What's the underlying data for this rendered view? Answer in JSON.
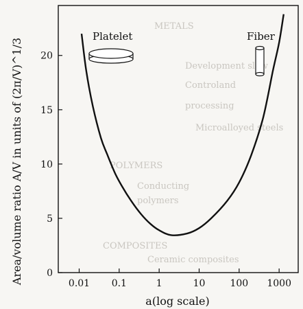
{
  "chart_data": {
    "type": "line",
    "xlabel": "a(log scale)",
    "ylabel": "Area/volume ratio A/V in units of (2π/V)^1/3",
    "xscale": "log",
    "xlim": [
      0.003,
      3000
    ],
    "ylim": [
      0,
      24.6
    ],
    "x_ticks": [
      {
        "value": 0.01,
        "label": "0.01"
      },
      {
        "value": 0.1,
        "label": "0.1"
      },
      {
        "value": 1,
        "label": "1"
      },
      {
        "value": 10,
        "label": "10"
      },
      {
        "value": 100,
        "label": "100"
      },
      {
        "value": 1000,
        "label": "1000"
      }
    ],
    "y_ticks": [
      {
        "value": 0,
        "label": "0"
      },
      {
        "value": 5,
        "label": "5"
      },
      {
        "value": 10,
        "label": "10"
      },
      {
        "value": 15,
        "label": "15"
      },
      {
        "value": 20,
        "label": "20"
      }
    ],
    "series": [
      {
        "x": [
          0.0115,
          0.015,
          0.022,
          0.035,
          0.05,
          0.08,
          0.12,
          0.2,
          0.35,
          0.6,
          1.0,
          2.0,
          5.0,
          10,
          20,
          50,
          100,
          200,
          400,
          700,
          1000,
          1300
        ],
        "y": [
          22.0,
          18.6,
          15.3,
          12.4,
          10.9,
          9.1,
          7.9,
          6.6,
          5.4,
          4.5,
          3.9,
          3.45,
          3.6,
          4.1,
          5.0,
          6.6,
          8.3,
          10.8,
          14.3,
          18.6,
          21.2,
          23.8
        ]
      }
    ],
    "annotations": [
      {
        "text": "Platelet",
        "icon": "platelet-disk-icon"
      },
      {
        "text": "Fiber",
        "icon": "fiber-cylinder-icon"
      }
    ]
  }
}
